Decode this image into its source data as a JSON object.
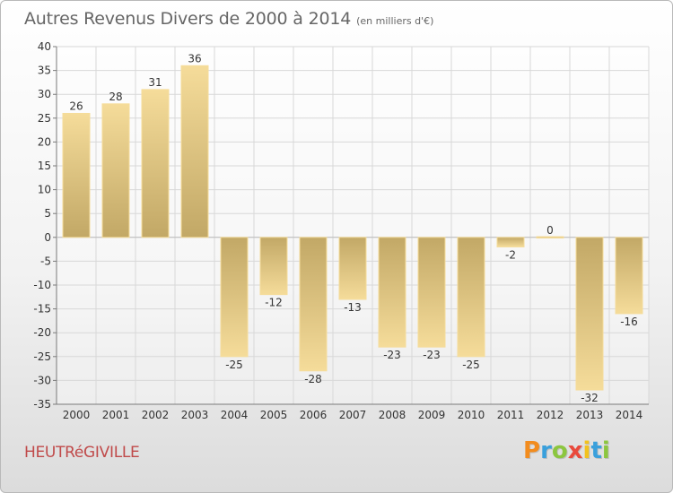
{
  "header": {
    "title": "Autres Revenus Divers de 2000 à 2014",
    "subtitle": "(en milliers d'€)"
  },
  "footer": {
    "commune": "HEUTRéGIVILLE",
    "logo": {
      "text": "Proxiti",
      "letters": [
        {
          "char": "P",
          "color": "#f28c1e"
        },
        {
          "char": "r",
          "color": "#3aa0dc"
        },
        {
          "char": "o",
          "color": "#8cc63f"
        },
        {
          "char": "x",
          "color": "#e94a3c"
        },
        {
          "char": "i",
          "color": "#f2c21e"
        },
        {
          "char": "t",
          "color": "#3aa0dc"
        },
        {
          "char": "i",
          "color": "#8cc63f"
        }
      ]
    }
  },
  "chart_data": {
    "type": "bar",
    "title": "Autres Revenus Divers de 2000 à 2014",
    "subtitle": "(en milliers d'€)",
    "categories": [
      "2000",
      "2001",
      "2002",
      "2003",
      "2004",
      "2005",
      "2006",
      "2007",
      "2008",
      "2009",
      "2010",
      "2011",
      "2012",
      "2013",
      "2014"
    ],
    "values": [
      26,
      28,
      31,
      36,
      -25,
      -12,
      -28,
      -13,
      -23,
      -23,
      -25,
      -2,
      0,
      -32,
      -16
    ],
    "ylim": [
      -35,
      40
    ],
    "yticks": [
      40,
      35,
      30,
      25,
      20,
      15,
      10,
      5,
      0,
      -5,
      -10,
      -15,
      -20,
      -25,
      -30,
      -35
    ],
    "grid": true,
    "colors": {
      "bar_light": "#f5dc9a",
      "bar_dark": "#c2a866",
      "grid": "#d8d8d8",
      "axis": "#7a7a7a",
      "text": "#333333"
    }
  }
}
